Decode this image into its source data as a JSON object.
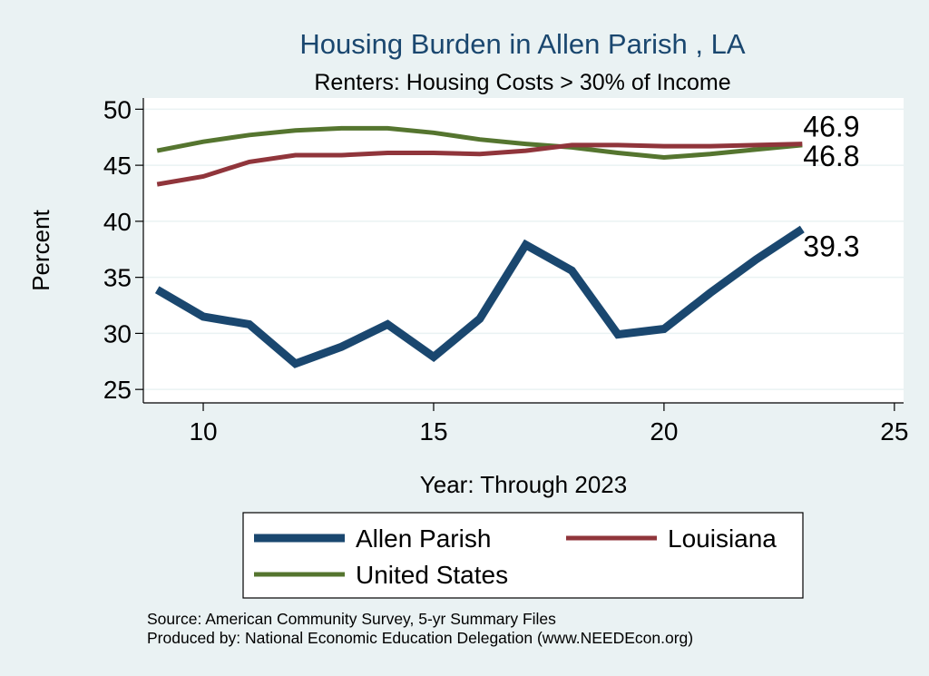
{
  "chart_data": {
    "type": "line",
    "title": "Housing Burden in Allen Parish , LA",
    "subtitle": "Renters: Housing Costs > 30% of Income",
    "xlabel": "Year: Through 2023",
    "ylabel": "Percent",
    "xlim": [
      8.7,
      25.2
    ],
    "ylim": [
      23.8,
      51
    ],
    "xticks": [
      10,
      15,
      20,
      25
    ],
    "yticks": [
      25,
      30,
      35,
      40,
      45,
      50
    ],
    "grid": true,
    "legend_position": "bottom",
    "x": [
      9,
      10,
      11,
      12,
      13,
      14,
      15,
      16,
      17,
      18,
      19,
      20,
      21,
      22,
      23
    ],
    "series": [
      {
        "name": "Allen Parish",
        "color": "#1a476f",
        "values": [
          33.9,
          31.5,
          30.8,
          27.3,
          28.8,
          30.8,
          27.9,
          31.3,
          37.9,
          35.6,
          29.9,
          30.4,
          33.6,
          36.6,
          39.3
        ],
        "end_label": "39.3"
      },
      {
        "name": "Louisiana",
        "color": "#90353b",
        "values": [
          43.3,
          44.0,
          45.3,
          45.9,
          45.9,
          46.1,
          46.1,
          46.0,
          46.3,
          46.8,
          46.8,
          46.7,
          46.7,
          46.8,
          46.9
        ],
        "end_label": "46.9"
      },
      {
        "name": "United States",
        "color": "#55752f",
        "values": [
          46.3,
          47.1,
          47.7,
          48.1,
          48.3,
          48.3,
          47.9,
          47.3,
          46.9,
          46.6,
          46.1,
          45.7,
          46.0,
          46.4,
          46.8
        ],
        "end_label": "46.8"
      }
    ]
  },
  "notes": {
    "source": "Source: American Community Survey, 5-yr Summary Files",
    "produced": "Produced by: National Economic Education Delegation (www.NEEDEcon.org)"
  }
}
